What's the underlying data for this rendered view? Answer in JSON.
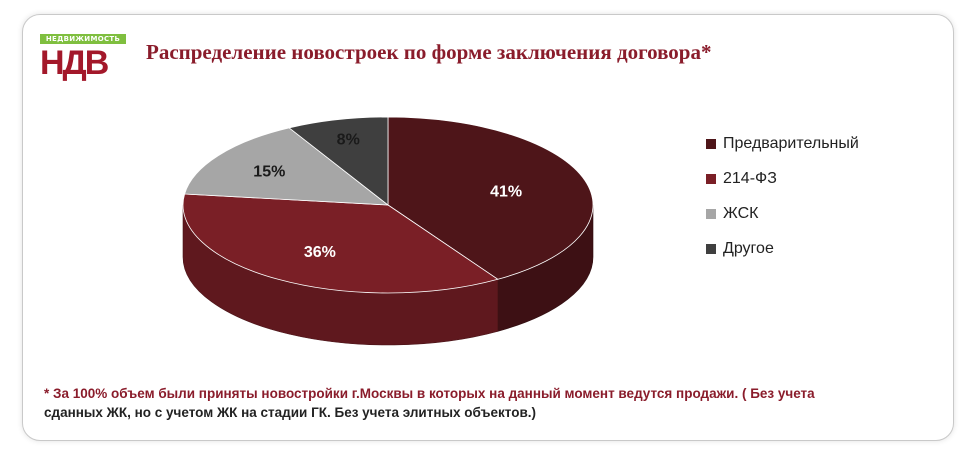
{
  "logo": {
    "top_text": "НЕДВИЖИМОСТЬ",
    "main_text": "НДВ"
  },
  "chart_data": {
    "type": "pie",
    "title": "Распределение новостроек по форме заключения договора*",
    "categories": [
      "Предварительный",
      "214-ФЗ",
      "ЖСК",
      "Другое"
    ],
    "values": [
      41,
      36,
      15,
      8
    ],
    "labels": [
      "41%",
      "36%",
      "15%",
      "8%"
    ],
    "colors": [
      "#4e1519",
      "#7a1f26",
      "#a6a6a6",
      "#3f3f3f"
    ],
    "legend_position": "right",
    "three_d": true
  },
  "footnote": {
    "line1": "* За 100% объем были приняты новостройки г.Москвы в которых на данный момент ведутся продажи. ( Без учета",
    "line2": "сданных ЖК, но с учетом ЖК на стадии ГК. Без учета элитных объектов.)"
  }
}
